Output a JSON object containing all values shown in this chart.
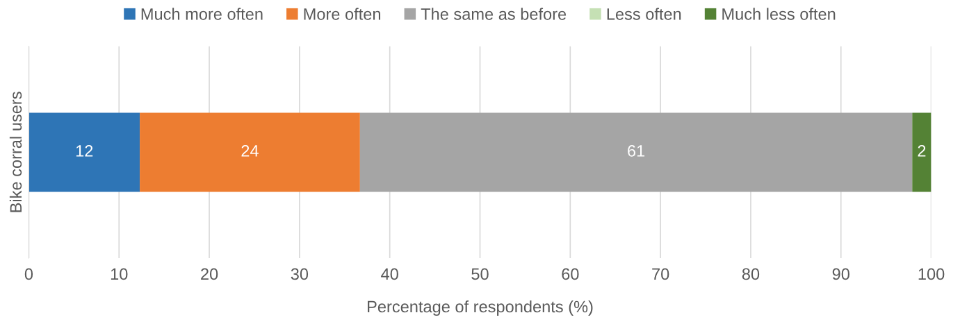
{
  "chart_data": {
    "type": "bar",
    "orientation": "horizontal",
    "stacked": true,
    "categories": [
      "Bike corral users"
    ],
    "series": [
      {
        "name": "Much more often",
        "color": "#2e75b6",
        "values": [
          12.3
        ],
        "value_labels": [
          "12"
        ]
      },
      {
        "name": "More often",
        "color": "#ed7d31",
        "values": [
          24.4
        ],
        "value_labels": [
          "24"
        ]
      },
      {
        "name": "The same as before",
        "color": "#a5a5a5",
        "values": [
          61.2
        ],
        "value_labels": [
          "61"
        ]
      },
      {
        "name": "Less often",
        "color": "#c5e0b4",
        "values": [
          0
        ],
        "value_labels": [
          null
        ]
      },
      {
        "name": "Much less often",
        "color": "#548235",
        "values": [
          2.1
        ],
        "value_labels": [
          "2"
        ]
      }
    ],
    "xlabel": "Percentage of respondents (%)",
    "xlim": [
      0,
      100
    ],
    "xticks": [
      0,
      10,
      20,
      30,
      40,
      50,
      60,
      70,
      80,
      90,
      100
    ],
    "grid": "x",
    "legend": "top"
  }
}
